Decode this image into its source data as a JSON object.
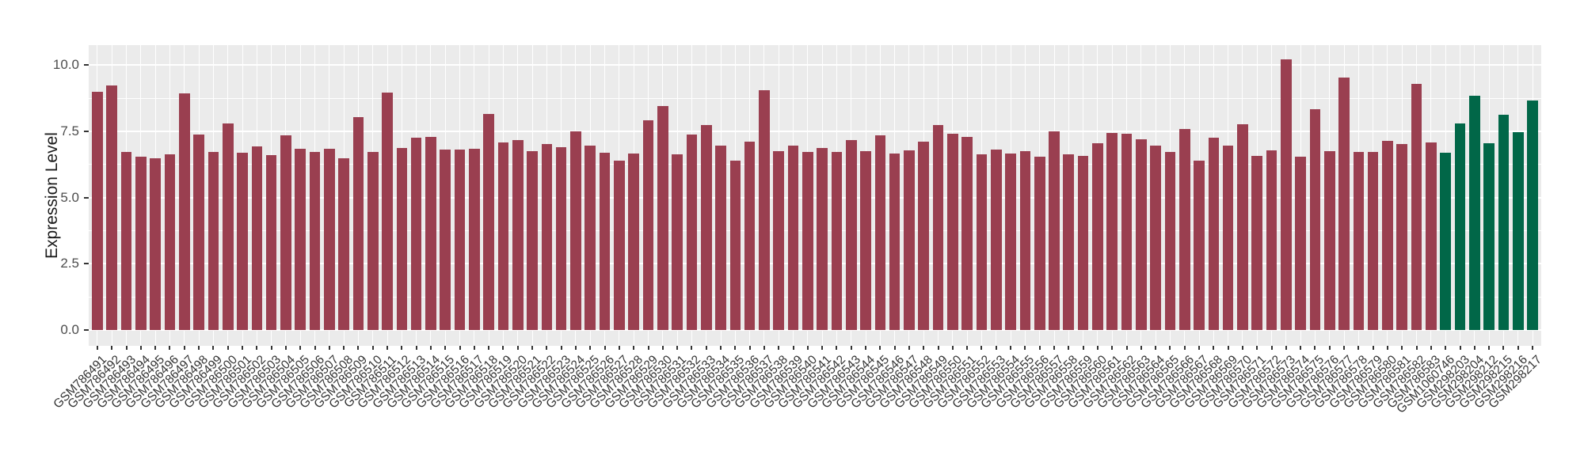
{
  "chart_data": {
    "type": "bar",
    "title": "",
    "xlabel": "",
    "ylabel": "Expression Level",
    "ylim": [
      0,
      10.78
    ],
    "yticks": [
      "0.0",
      "2.5",
      "5.0",
      "7.5",
      "10.0"
    ],
    "ytick_values": [
      0,
      2.5,
      5,
      7.5,
      10
    ],
    "minor_gridlines": [
      1.25,
      3.75,
      6.25,
      8.75
    ],
    "grid": "on",
    "legend": "none",
    "panel_bg": "#ebebeb",
    "grid_color": "#ffffff",
    "colors": {
      "default": "#9a3f50",
      "highlight": "#016748"
    },
    "highlight_indices": [
      93,
      94,
      95,
      96,
      97,
      98,
      99
    ],
    "categories": [
      "GSM786491",
      "GSM786492",
      "GSM786493",
      "GSM786494",
      "GSM786495",
      "GSM786496",
      "GSM786497",
      "GSM786498",
      "GSM786499",
      "GSM786500",
      "GSM786501",
      "GSM786502",
      "GSM786503",
      "GSM786504",
      "GSM786505",
      "GSM786506",
      "GSM786507",
      "GSM786508",
      "GSM786509",
      "GSM786510",
      "GSM786511",
      "GSM786512",
      "GSM786513",
      "GSM786514",
      "GSM786515",
      "GSM786516",
      "GSM786517",
      "GSM786518",
      "GSM786519",
      "GSM786520",
      "GSM786521",
      "GSM786522",
      "GSM786523",
      "GSM786524",
      "GSM786525",
      "GSM786526",
      "GSM786527",
      "GSM786528",
      "GSM786529",
      "GSM786530",
      "GSM786531",
      "GSM786532",
      "GSM786533",
      "GSM786534",
      "GSM786535",
      "GSM786536",
      "GSM786537",
      "GSM786538",
      "GSM786539",
      "GSM786540",
      "GSM786541",
      "GSM786542",
      "GSM786543",
      "GSM786544",
      "GSM786545",
      "GSM786546",
      "GSM786547",
      "GSM786548",
      "GSM786549",
      "GSM786550",
      "GSM786551",
      "GSM786552",
      "GSM786553",
      "GSM786554",
      "GSM786555",
      "GSM786556",
      "GSM786557",
      "GSM786558",
      "GSM786559",
      "GSM786560",
      "GSM786561",
      "GSM786562",
      "GSM786563",
      "GSM786564",
      "GSM786565",
      "GSM786566",
      "GSM786567",
      "GSM786568",
      "GSM786569",
      "GSM786570",
      "GSM786571",
      "GSM786572",
      "GSM786573",
      "GSM786574",
      "GSM786575",
      "GSM786576",
      "GSM786577",
      "GSM786578",
      "GSM786579",
      "GSM786580",
      "GSM786581",
      "GSM786582",
      "GSM786583",
      "GSM1060746",
      "GSM298203",
      "GSM298204",
      "GSM298212",
      "GSM298215",
      "GSM298216",
      "GSM298217"
    ],
    "values": [
      9.0,
      9.24,
      6.73,
      6.53,
      6.48,
      6.63,
      8.94,
      7.37,
      6.73,
      7.8,
      6.7,
      6.92,
      6.6,
      7.36,
      6.85,
      6.72,
      6.83,
      6.48,
      8.04,
      6.72,
      8.96,
      6.88,
      7.25,
      7.28,
      6.81,
      6.81,
      6.84,
      8.14,
      7.08,
      7.17,
      6.75,
      7.02,
      6.9,
      7.49,
      6.97,
      6.68,
      6.38,
      6.65,
      7.92,
      8.45,
      6.63,
      7.37,
      7.73,
      6.95,
      6.38,
      7.1,
      9.06,
      6.75,
      6.95,
      6.72,
      6.88,
      6.72,
      7.17,
      6.75,
      7.35,
      6.65,
      6.78,
      7.12,
      7.75,
      7.42,
      7.3,
      6.63,
      6.8,
      6.65,
      6.75,
      6.53,
      7.5,
      6.62,
      6.57,
      7.05,
      7.45,
      7.4,
      7.2,
      6.97,
      6.73,
      7.58,
      6.4,
      7.25,
      6.95,
      7.77,
      6.58,
      6.78,
      10.21,
      6.55,
      8.32,
      6.75,
      9.52,
      6.73,
      6.72,
      7.13,
      7.03,
      9.3,
      7.07,
      6.7,
      7.8,
      8.85,
      7.05,
      8.12,
      7.47,
      8.67
    ]
  },
  "layout_note": "expression bar chart, last 7 samples highlighted green"
}
